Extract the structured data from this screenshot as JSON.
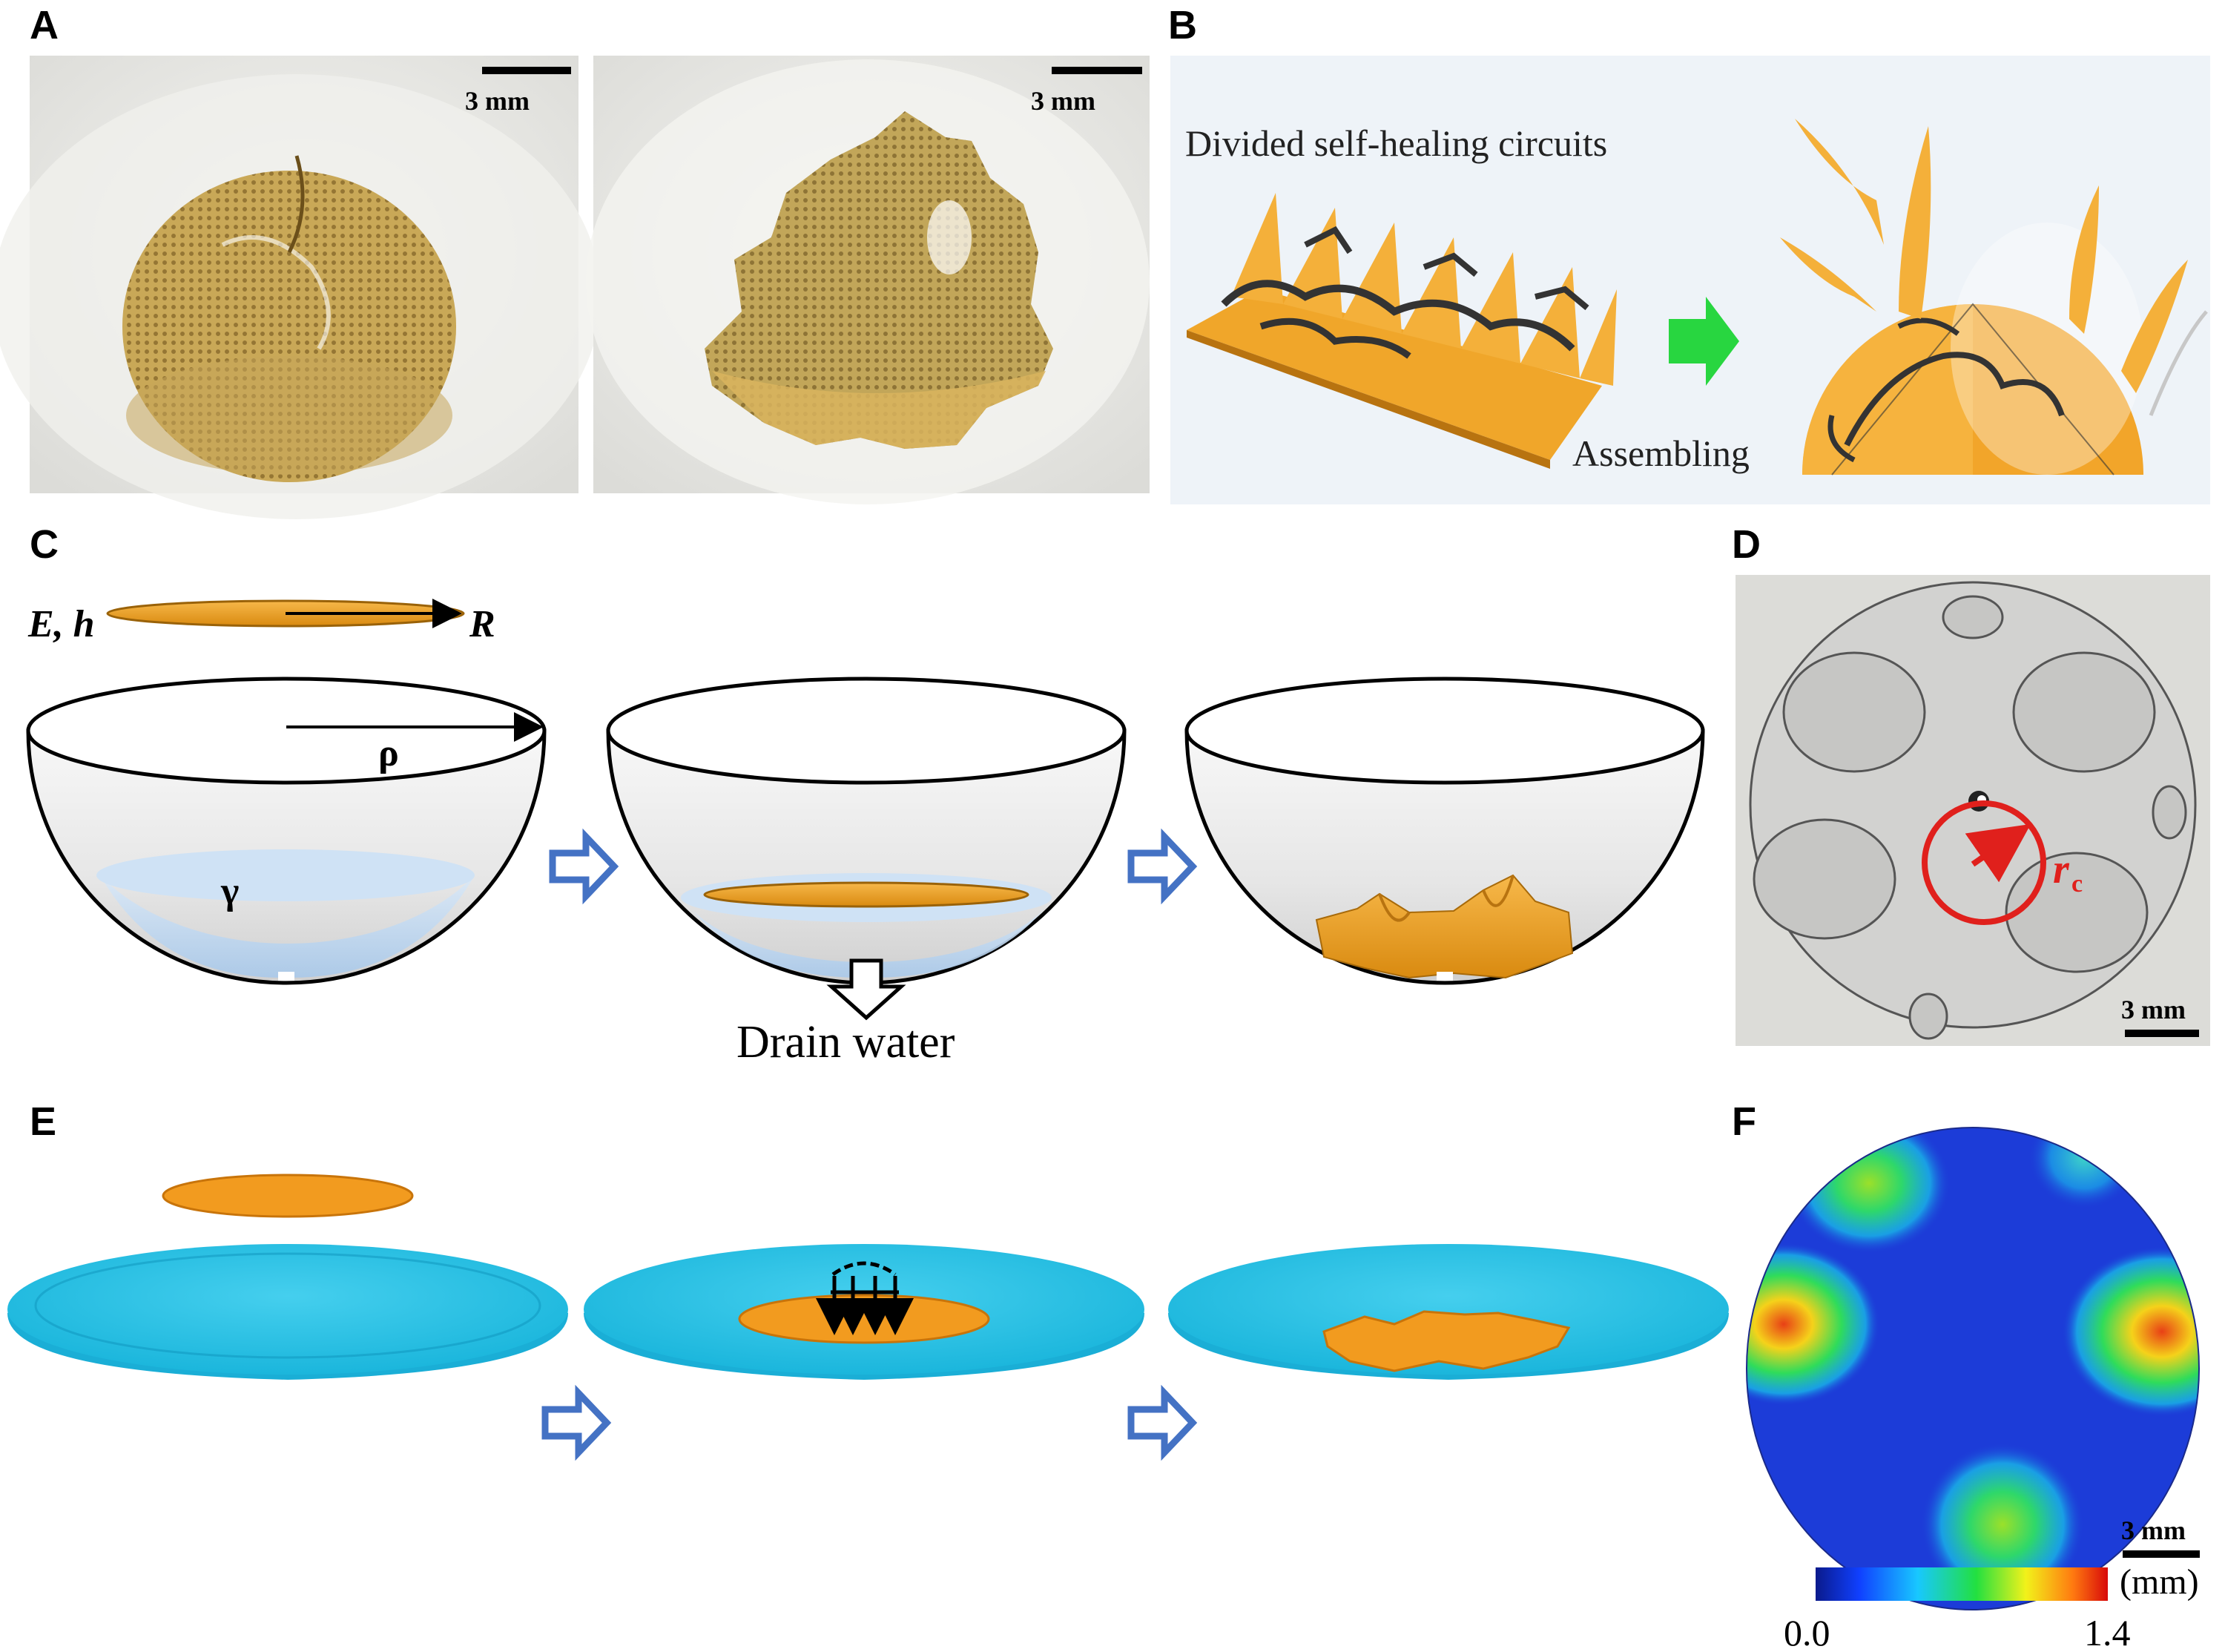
{
  "panels": {
    "A": {
      "label": "A",
      "scale_left": "3 mm",
      "scale_right": "3 mm"
    },
    "B": {
      "label": "B",
      "caption_top": "Divided self-healing circuits",
      "caption_bottom": "Assembling"
    },
    "C": {
      "label": "C",
      "symbol_eh": "E, h",
      "symbol_R": "R",
      "symbol_rho": "ρ",
      "symbol_gamma": "γ",
      "drain_label": "Drain water"
    },
    "D": {
      "label": "D",
      "symbol_rc": "r",
      "symbol_rc_sub": "c",
      "scale": "3 mm"
    },
    "E": {
      "label": "E"
    },
    "F": {
      "label": "F",
      "scale": "3 mm",
      "colorbar_min": "0.0",
      "colorbar_max": "1.4",
      "colorbar_unit": "(mm)"
    }
  },
  "colors": {
    "gold": "#f2a52a",
    "cyan": "#27c6e8",
    "arrow_blue": "#4472c4",
    "red": "#e0201c",
    "photo_bg": "#e9e9e6"
  }
}
